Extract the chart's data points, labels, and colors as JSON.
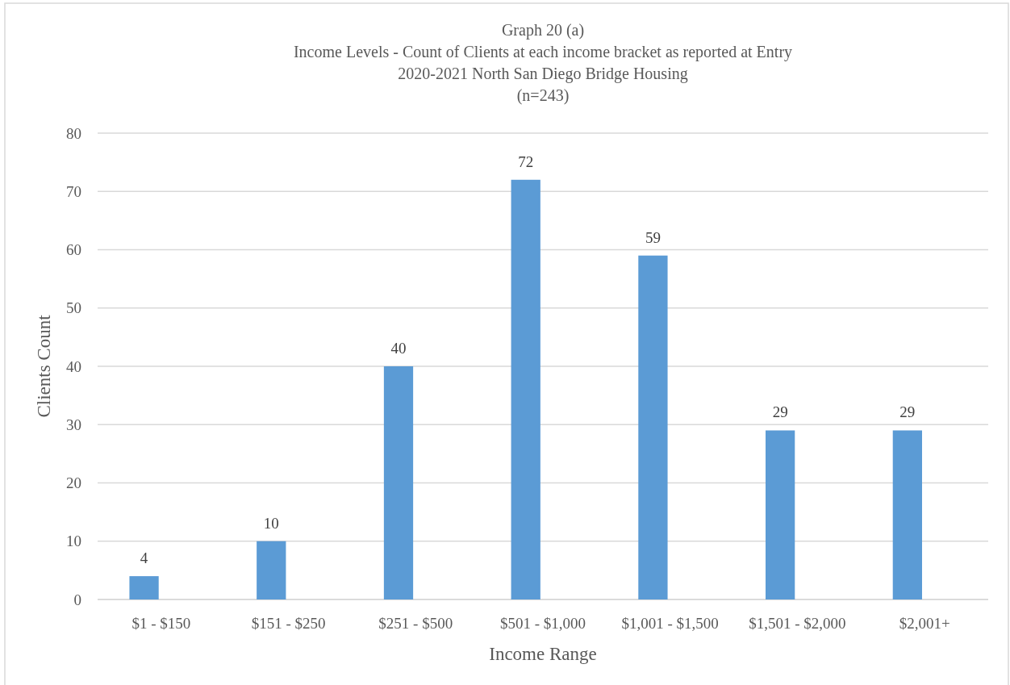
{
  "chart_data": {
    "type": "bar",
    "title": "Graph 20 (a)",
    "subtitle": "Income Levels - Count of Clients at each income bracket as reported at Entry\n2020-2021 North San Diego Bridge Housing\n(n=243)",
    "xlabel": "Income Range",
    "ylabel": "Clients Count",
    "categories": [
      "$1 - $150",
      "$151 - $250",
      "$251 - $500",
      "$501 - $1,000",
      "$1,001 - $1,500",
      "$1,501 - $2,000",
      "$2,001+"
    ],
    "values": [
      4,
      10,
      40,
      72,
      59,
      29,
      29
    ],
    "color": "#5b9bd5",
    "ylim": [
      0,
      80
    ],
    "yticks": [
      0,
      10,
      20,
      30,
      40,
      50,
      60,
      70,
      80
    ],
    "grid": "y",
    "data_labels": true
  }
}
